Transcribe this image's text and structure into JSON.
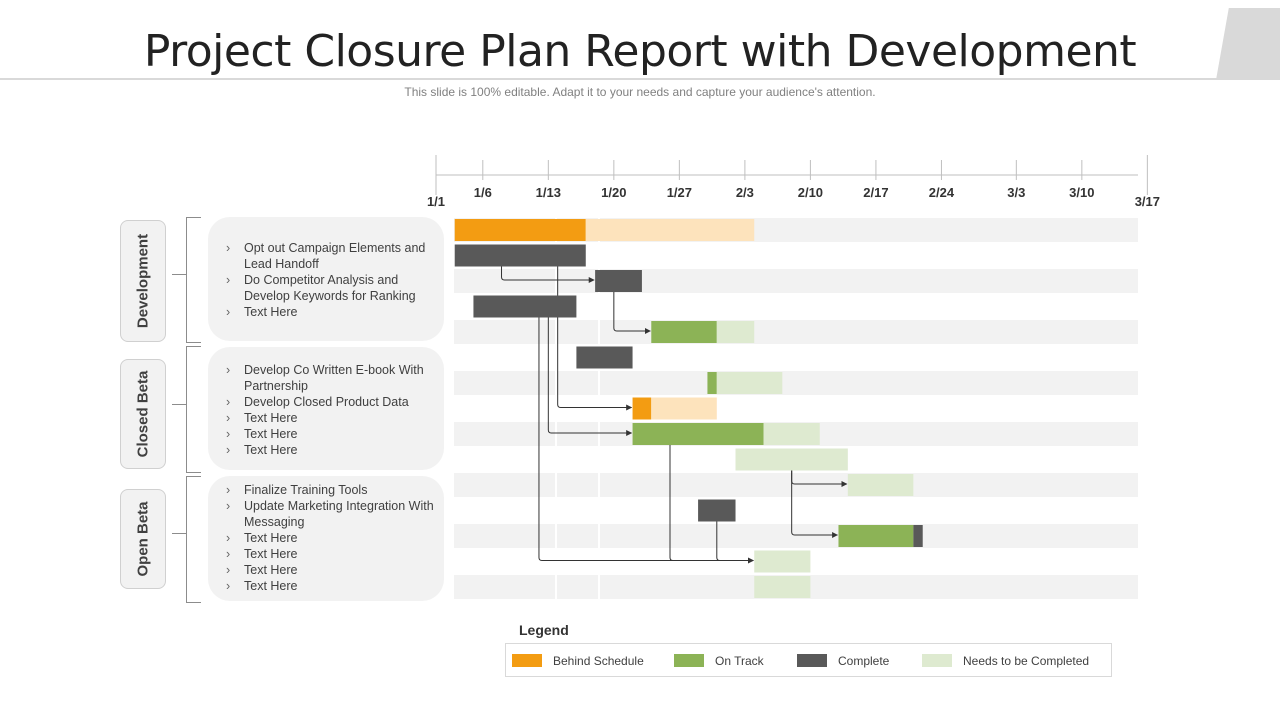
{
  "header": {
    "title": "Project Closure Plan Report with Development",
    "subtitle": "This slide is 100% editable. Adapt it to your needs and capture your audience's attention."
  },
  "colors": {
    "behind": "#f39c12",
    "behind_light": "#fde3bc",
    "on_track": "#8cb356",
    "complete": "#595959",
    "needs": "#deead0",
    "row_band": "#f2f2f2"
  },
  "phases": [
    {
      "label": "Development",
      "tasks": [
        "Opt out Campaign Elements and Lead Handoff",
        "Do Competitor Analysis and Develop Keywords for Ranking",
        "Text Here"
      ]
    },
    {
      "label": "Closed Beta",
      "tasks": [
        "Develop Co Written E-book With Partnership",
        "Develop Closed Product Data",
        "Text Here",
        "Text Here",
        "Text Here"
      ]
    },
    {
      "label": "Open Beta",
      "tasks": [
        "Finalize Training Tools",
        "Update Marketing Integration With Messaging",
        "Text Here",
        "Text Here",
        "Text Here",
        "Text Here"
      ]
    }
  ],
  "chart_data": {
    "type": "gantt",
    "x_ticks": [
      "1/1",
      "1/6",
      "1/13",
      "1/20",
      "1/27",
      "2/3",
      "2/10",
      "2/17",
      "2/24",
      "3/3",
      "3/10",
      "3/17"
    ],
    "bars": [
      {
        "row": 0,
        "start": "01-03",
        "end": "01-17",
        "status": "behind"
      },
      {
        "row": 0,
        "start": "01-17",
        "end": "02-04",
        "status": "behind_light"
      },
      {
        "row": 1,
        "start": "01-03",
        "end": "01-17",
        "status": "complete"
      },
      {
        "row": 2,
        "start": "01-18",
        "end": "01-23",
        "status": "complete"
      },
      {
        "row": 3,
        "start": "01-05",
        "end": "01-16",
        "status": "complete"
      },
      {
        "row": 4,
        "start": "01-24",
        "end": "01-31",
        "status": "on_track"
      },
      {
        "row": 4,
        "start": "01-31",
        "end": "02-04",
        "status": "needs"
      },
      {
        "row": 5,
        "start": "01-16",
        "end": "01-22",
        "status": "complete"
      },
      {
        "row": 6,
        "start": "01-30",
        "end": "01-31",
        "status": "on_track"
      },
      {
        "row": 6,
        "start": "01-31",
        "end": "02-07",
        "status": "needs"
      },
      {
        "row": 7,
        "start": "01-22",
        "end": "01-24",
        "status": "behind"
      },
      {
        "row": 7,
        "start": "01-24",
        "end": "01-31",
        "status": "behind_light"
      },
      {
        "row": 8,
        "start": "01-22",
        "end": "02-05",
        "status": "on_track"
      },
      {
        "row": 8,
        "start": "02-05",
        "end": "02-11",
        "status": "needs"
      },
      {
        "row": 9,
        "start": "02-02",
        "end": "02-14",
        "status": "needs"
      },
      {
        "row": 10,
        "start": "02-14",
        "end": "02-21",
        "status": "needs"
      },
      {
        "row": 11,
        "start": "01-29",
        "end": "02-02",
        "status": "complete"
      },
      {
        "row": 12,
        "start": "02-13",
        "end": "02-21",
        "status": "on_track"
      },
      {
        "row": 12,
        "start": "02-21",
        "end": "02-22",
        "status": "complete"
      },
      {
        "row": 13,
        "start": "02-04",
        "end": "02-10",
        "status": "needs"
      },
      {
        "row": 14,
        "start": "02-04",
        "end": "02-10",
        "status": "needs"
      }
    ],
    "dependencies": [
      {
        "from_row": 1,
        "from": "01-08",
        "to_row": 2,
        "to": "01-18"
      },
      {
        "from_row": 2,
        "from": "01-20",
        "to_row": 4,
        "to": "01-24"
      },
      {
        "from_row": 1,
        "from": "01-14",
        "to_row": 7,
        "to": "01-22"
      },
      {
        "from_row": 3,
        "from": "01-13",
        "to_row": 8,
        "to": "01-22"
      },
      {
        "from_row": 3,
        "from": "01-12",
        "to_row": 13,
        "to": "02-04"
      },
      {
        "from_row": 8,
        "from": "01-26",
        "to_row": 13,
        "to": "02-04"
      },
      {
        "from_row": 11,
        "from": "01-31",
        "to_row": 13,
        "to": "02-04"
      },
      {
        "from_row": 9,
        "from": "02-08",
        "to_row": 10,
        "to": "02-14"
      },
      {
        "from_row": 9,
        "from": "02-08",
        "to_row": 12,
        "to": "02-13"
      }
    ],
    "legend": [
      {
        "label": "Behind Schedule",
        "status": "behind"
      },
      {
        "label": "On Track",
        "status": "on_track"
      },
      {
        "label": "Complete",
        "status": "complete"
      },
      {
        "label": "Needs to be Completed",
        "status": "needs"
      }
    ],
    "legend_title": "Legend"
  }
}
